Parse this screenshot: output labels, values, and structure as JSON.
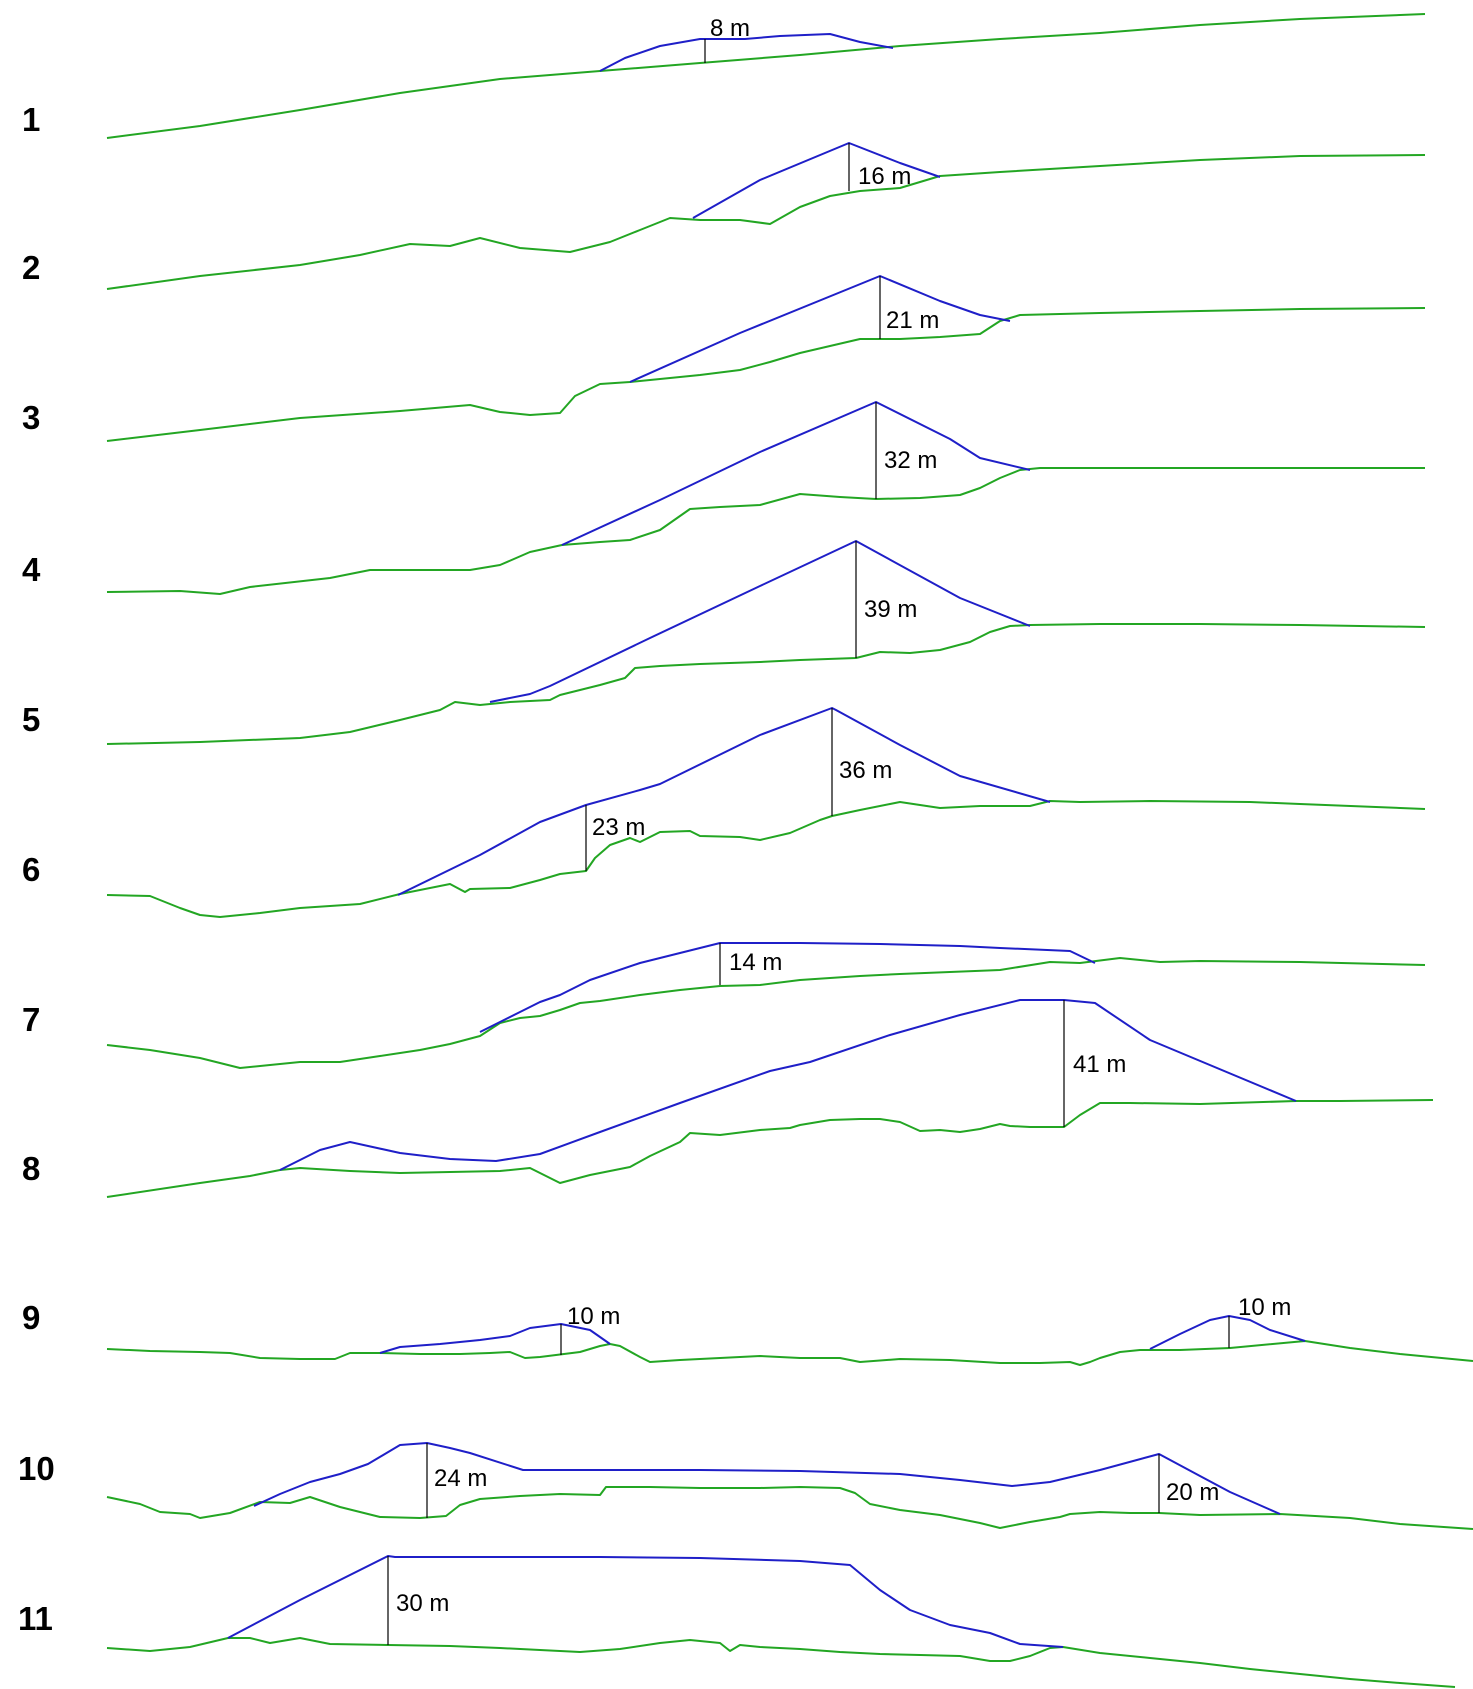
{
  "profiles": [
    {
      "number": "1",
      "measurements": [
        "8 m"
      ]
    },
    {
      "number": "2",
      "measurements": [
        "16 m"
      ]
    },
    {
      "number": "3",
      "measurements": [
        "21 m"
      ]
    },
    {
      "number": "4",
      "measurements": [
        "32 m"
      ]
    },
    {
      "number": "5",
      "measurements": [
        "39 m"
      ]
    },
    {
      "number": "6",
      "measurements": [
        "36 m",
        "23 m"
      ]
    },
    {
      "number": "7",
      "measurements": [
        "14 m"
      ]
    },
    {
      "number": "8",
      "measurements": [
        "41 m"
      ]
    },
    {
      "number": "9",
      "measurements": [
        "10 m",
        "10 m"
      ]
    },
    {
      "number": "10",
      "measurements": [
        "24 m",
        "20 m"
      ]
    },
    {
      "number": "11",
      "measurements": [
        "30 m"
      ]
    }
  ],
  "colors": {
    "ground": "#23a623",
    "moraine": "#1f1fc8",
    "marker": "#000000"
  }
}
